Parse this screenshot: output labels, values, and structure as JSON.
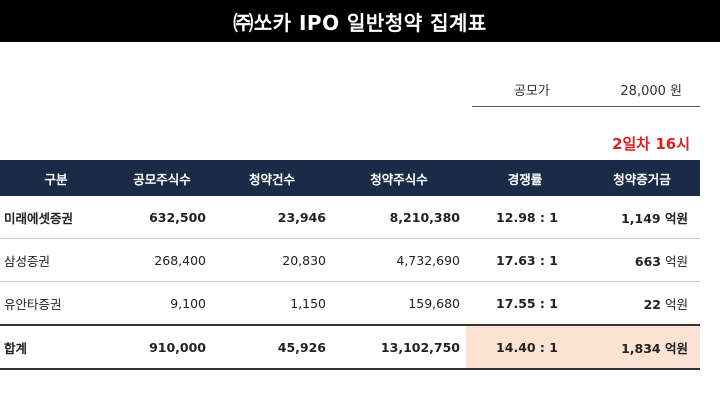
{
  "title": "㈜쏘카 IPO 일반청약 집계표",
  "offer_price": {
    "label": "공모가",
    "value": "28,000 원"
  },
  "day_label": "2일차 16시",
  "table": {
    "headers": [
      "구분",
      "공모주식수",
      "청약건수",
      "청약주식수",
      "경쟁률",
      "청약증거금"
    ],
    "rows": [
      {
        "name": "미래에셋증권",
        "shares": "632,500",
        "count": "23,946",
        "subscribed": "8,210,380",
        "rate": "12.98 : 1",
        "funds": "1,149",
        "unit": "억원"
      },
      {
        "name": "삼성증권",
        "shares": "268,400",
        "count": "20,830",
        "subscribed": "4,732,690",
        "rate": "17.63 : 1",
        "funds": "663",
        "unit": "억원"
      },
      {
        "name": "유안타증권",
        "shares": "9,100",
        "count": "1,150",
        "subscribed": "159,680",
        "rate": "17.55 : 1",
        "funds": "22",
        "unit": "억원"
      }
    ],
    "total": {
      "name": "합계",
      "shares": "910,000",
      "count": "45,926",
      "subscribed": "13,102,750",
      "rate": "14.40 : 1",
      "funds": "1,834",
      "unit": "억원"
    }
  }
}
